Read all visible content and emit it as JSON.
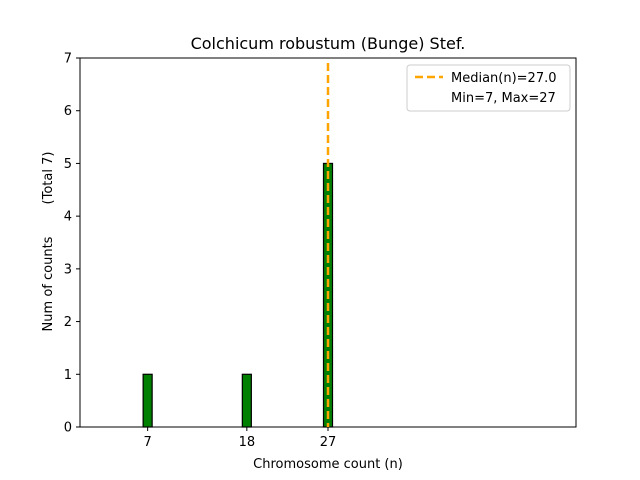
{
  "chart_data": {
    "type": "bar",
    "title": "Colchicum robustum (Bunge) Stef.",
    "xlabel": "Chromosome count (n)",
    "ylabel": "Num of counts",
    "ylabel_total": "(Total 7)",
    "x": [
      7,
      18,
      27
    ],
    "values": [
      1,
      1,
      5
    ],
    "xticks": [
      "7",
      "18",
      "27"
    ],
    "yticks": [
      "0",
      "1",
      "2",
      "3",
      "4",
      "5",
      "6",
      "7"
    ],
    "xlim": [
      -0.5,
      54.5
    ],
    "ylim": [
      0,
      7
    ],
    "bar_color": "#008000",
    "bar_edge_color": "#000000",
    "median": 27.0,
    "median_color": "#ffa500",
    "legend": {
      "placement": "top-right",
      "median_label": "Median(n)=27.0",
      "range_label": "Min=7, Max=27"
    },
    "grid": false
  }
}
